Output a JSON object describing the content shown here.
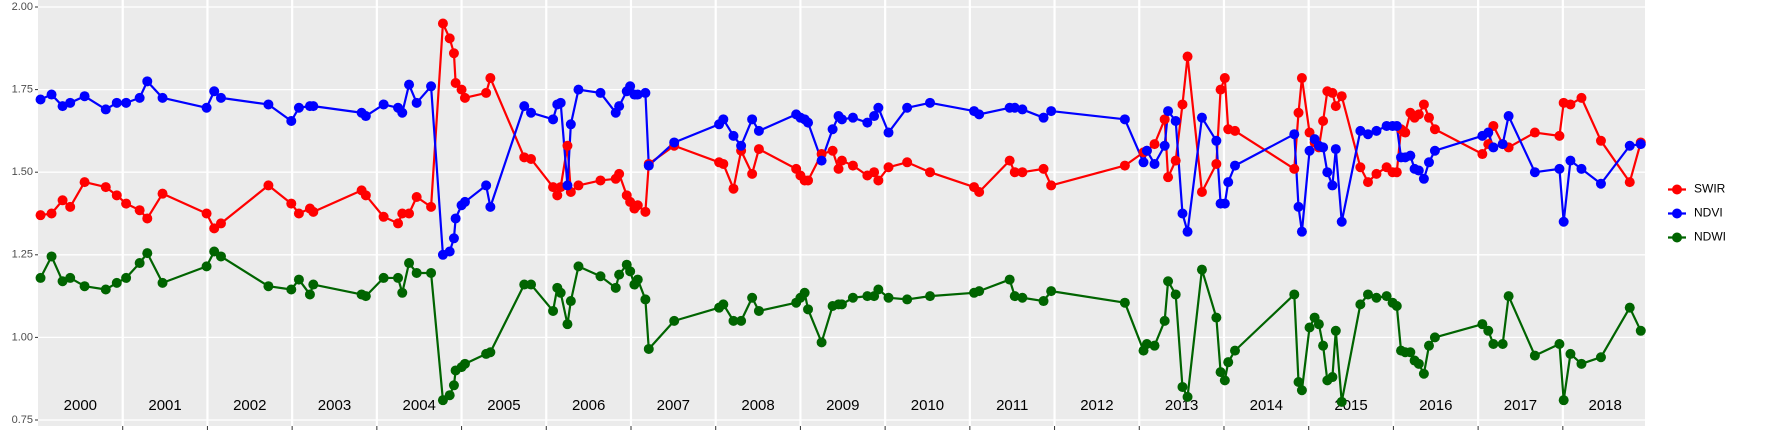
{
  "chart_data": {
    "type": "line",
    "x": [
      2000.03,
      2000.16,
      2000.29,
      2000.38,
      2000.55,
      2000.8,
      2000.93,
      2001.04,
      2001.2,
      2001.29,
      2001.47,
      2001.99,
      2002.08,
      2002.16,
      2002.72,
      2002.99,
      2003.08,
      2003.21,
      2003.25,
      2003.82,
      2003.87,
      2004.08,
      2004.25,
      2004.3,
      2004.38,
      2004.47,
      2004.64,
      2004.78,
      2004.86,
      2004.91,
      2004.93,
      2005.0,
      2005.04,
      2005.29,
      2005.34,
      2005.74,
      2005.82,
      2006.08,
      2006.13,
      2006.17,
      2006.25,
      2006.29,
      2006.38,
      2006.64,
      2006.82,
      2006.86,
      2006.95,
      2006.99,
      2007.04,
      2007.08,
      2007.17,
      2007.21,
      2007.51,
      2008.04,
      2008.09,
      2008.21,
      2008.3,
      2008.43,
      2008.51,
      2008.95,
      2009.0,
      2009.05,
      2009.09,
      2009.25,
      2009.38,
      2009.45,
      2009.49,
      2009.62,
      2009.79,
      2009.87,
      2009.92,
      2010.04,
      2010.26,
      2010.53,
      2011.05,
      2011.11,
      2011.47,
      2011.53,
      2011.62,
      2011.87,
      2011.96,
      2012.83,
      2013.05,
      2013.09,
      2013.18,
      2013.3,
      2013.34,
      2013.43,
      2013.51,
      2013.57,
      2013.74,
      2013.91,
      2013.96,
      2014.01,
      2014.05,
      2014.13,
      2014.83,
      2014.88,
      2014.92,
      2015.01,
      2015.07,
      2015.12,
      2015.17,
      2015.22,
      2015.28,
      2015.32,
      2015.39,
      2015.61,
      2015.7,
      2015.8,
      2015.92,
      2015.99,
      2016.04,
      2016.09,
      2016.14,
      2016.2,
      2016.25,
      2016.3,
      2016.36,
      2016.42,
      2016.49,
      2017.05,
      2017.12,
      2017.18,
      2017.29,
      2017.36,
      2017.67,
      2017.96,
      2018.01,
      2018.09,
      2018.22,
      2018.45,
      2018.79,
      2018.92
    ],
    "series": [
      {
        "name": "SWIR",
        "color": "#ff0000",
        "values": [
          1.37,
          1.375,
          1.415,
          1.395,
          1.47,
          1.455,
          1.43,
          1.405,
          1.385,
          1.36,
          1.435,
          1.375,
          1.33,
          1.345,
          1.46,
          1.405,
          1.375,
          1.39,
          1.38,
          1.445,
          1.43,
          1.365,
          1.345,
          1.375,
          1.375,
          1.425,
          1.395,
          1.95,
          1.905,
          1.86,
          1.77,
          1.75,
          1.725,
          1.74,
          1.785,
          1.545,
          1.54,
          1.455,
          1.43,
          1.455,
          1.58,
          1.44,
          1.46,
          1.475,
          1.48,
          1.495,
          1.43,
          1.41,
          1.39,
          1.4,
          1.38,
          1.525,
          1.58,
          1.53,
          1.525,
          1.45,
          1.565,
          1.495,
          1.57,
          1.51,
          1.49,
          1.475,
          1.475,
          1.555,
          1.565,
          1.51,
          1.535,
          1.52,
          1.49,
          1.5,
          1.475,
          1.515,
          1.53,
          1.5,
          1.455,
          1.44,
          1.535,
          1.5,
          1.5,
          1.51,
          1.46,
          1.52,
          1.56,
          1.565,
          1.585,
          1.66,
          1.485,
          1.535,
          1.705,
          1.85,
          1.44,
          1.525,
          1.75,
          1.785,
          1.63,
          1.625,
          1.51,
          1.68,
          1.785,
          1.62,
          1.59,
          1.575,
          1.655,
          1.745,
          1.74,
          1.7,
          1.73,
          1.515,
          1.47,
          1.495,
          1.515,
          1.5,
          1.5,
          1.63,
          1.62,
          1.68,
          1.665,
          1.675,
          1.705,
          1.665,
          1.63,
          1.555,
          1.585,
          1.64,
          1.585,
          1.575,
          1.62,
          1.61,
          1.71,
          1.705,
          1.725,
          1.595,
          1.47,
          1.59
        ]
      },
      {
        "name": "NDVI",
        "color": "#0000ff",
        "values": [
          1.72,
          1.735,
          1.7,
          1.71,
          1.73,
          1.69,
          1.71,
          1.71,
          1.725,
          1.775,
          1.725,
          1.695,
          1.745,
          1.725,
          1.705,
          1.655,
          1.695,
          1.7,
          1.7,
          1.68,
          1.67,
          1.705,
          1.695,
          1.68,
          1.765,
          1.71,
          1.76,
          1.25,
          1.26,
          1.3,
          1.36,
          1.4,
          1.41,
          1.46,
          1.395,
          1.7,
          1.68,
          1.66,
          1.705,
          1.71,
          1.46,
          1.645,
          1.75,
          1.74,
          1.68,
          1.7,
          1.745,
          1.76,
          1.735,
          1.735,
          1.74,
          1.52,
          1.59,
          1.645,
          1.66,
          1.61,
          1.58,
          1.66,
          1.625,
          1.675,
          1.665,
          1.66,
          1.65,
          1.535,
          1.63,
          1.67,
          1.66,
          1.665,
          1.65,
          1.67,
          1.695,
          1.62,
          1.695,
          1.71,
          1.685,
          1.675,
          1.695,
          1.695,
          1.69,
          1.665,
          1.685,
          1.66,
          1.53,
          1.565,
          1.525,
          1.58,
          1.685,
          1.655,
          1.375,
          1.32,
          1.665,
          1.595,
          1.405,
          1.405,
          1.47,
          1.52,
          1.615,
          1.395,
          1.32,
          1.565,
          1.6,
          1.58,
          1.575,
          1.5,
          1.46,
          1.57,
          1.35,
          1.625,
          1.615,
          1.625,
          1.64,
          1.64,
          1.64,
          1.545,
          1.545,
          1.55,
          1.51,
          1.505,
          1.48,
          1.53,
          1.565,
          1.61,
          1.62,
          1.575,
          1.585,
          1.67,
          1.5,
          1.51,
          1.35,
          1.535,
          1.51,
          1.465,
          1.58,
          1.585
        ]
      },
      {
        "name": "NDWI",
        "color": "#006400",
        "values": [
          1.18,
          1.245,
          1.17,
          1.18,
          1.155,
          1.145,
          1.165,
          1.18,
          1.225,
          1.255,
          1.165,
          1.215,
          1.26,
          1.245,
          1.155,
          1.145,
          1.175,
          1.13,
          1.16,
          1.13,
          1.125,
          1.18,
          1.18,
          1.135,
          1.225,
          1.195,
          1.195,
          0.81,
          0.825,
          0.855,
          0.9,
          0.91,
          0.92,
          0.95,
          0.955,
          1.16,
          1.16,
          1.08,
          1.15,
          1.135,
          1.04,
          1.11,
          1.215,
          1.185,
          1.15,
          1.19,
          1.22,
          1.2,
          1.16,
          1.175,
          1.115,
          0.965,
          1.05,
          1.09,
          1.1,
          1.05,
          1.05,
          1.12,
          1.08,
          1.105,
          1.12,
          1.135,
          1.085,
          0.985,
          1.095,
          1.1,
          1.1,
          1.12,
          1.125,
          1.125,
          1.145,
          1.12,
          1.115,
          1.125,
          1.135,
          1.14,
          1.175,
          1.125,
          1.12,
          1.11,
          1.14,
          1.105,
          0.96,
          0.98,
          0.975,
          1.05,
          1.17,
          1.13,
          0.85,
          0.82,
          1.205,
          1.06,
          0.895,
          0.87,
          0.925,
          0.96,
          1.13,
          0.865,
          0.84,
          1.03,
          1.06,
          1.04,
          0.975,
          0.87,
          0.88,
          1.02,
          0.805,
          1.1,
          1.13,
          1.12,
          1.125,
          1.105,
          1.095,
          0.96,
          0.955,
          0.955,
          0.93,
          0.92,
          0.89,
          0.975,
          1.0,
          1.04,
          1.02,
          0.98,
          0.98,
          1.125,
          0.945,
          0.98,
          0.81,
          0.95,
          0.92,
          0.94,
          1.09,
          1.02
        ]
      }
    ],
    "xlim": [
      2000,
      2018.97
    ],
    "xticks": [
      2001,
      2002,
      2003,
      2004,
      2005,
      2006,
      2007,
      2008,
      2009,
      2010,
      2011,
      2012,
      2013,
      2014,
      2015,
      2016,
      2017,
      2018
    ],
    "year_labels": [
      2000,
      2001,
      2002,
      2003,
      2004,
      2005,
      2006,
      2007,
      2008,
      2009,
      2010,
      2011,
      2012,
      2013,
      2014,
      2015,
      2016,
      2017,
      2018
    ],
    "ylim": [
      0.75,
      2.0
    ],
    "yticks": [
      {
        "value": 0.75,
        "label": "0.75"
      },
      {
        "value": 1.0,
        "label": "1.00"
      },
      {
        "value": 1.25,
        "label": "1.25"
      },
      {
        "value": 1.5,
        "label": "1.50"
      },
      {
        "value": 1.75,
        "label": "1.75"
      },
      {
        "value": 2.0,
        "label": "2.00"
      }
    ],
    "grid": true,
    "legend": "right"
  }
}
